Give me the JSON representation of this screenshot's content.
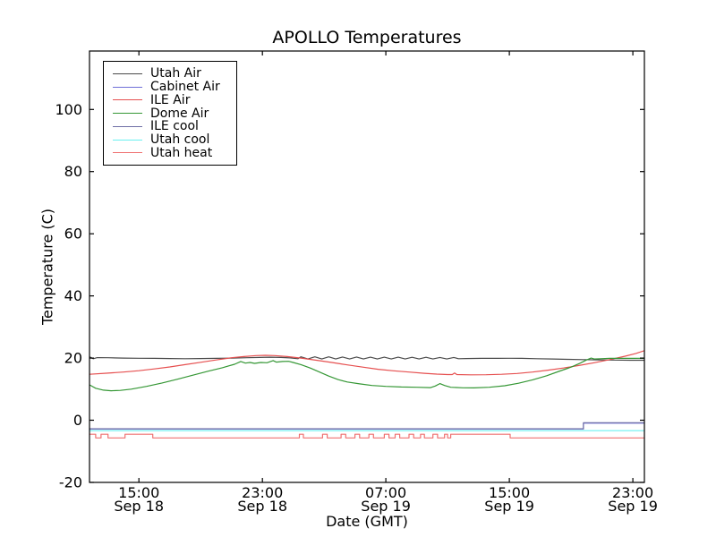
{
  "figure": {
    "background": "#ffffff",
    "frame_color": "#000000",
    "text_color": "#000000"
  },
  "chart_data": {
    "type": "line",
    "title": "APOLLO Temperatures",
    "xlabel": "Date (GMT)",
    "ylabel": "Temperature (C)",
    "grid": false,
    "legend_position": "upper left",
    "x_unit": "hours since Sep 18 00:00 GMT",
    "xlim": [
      11.8,
      47.75
    ],
    "ylim": [
      -20,
      118.8
    ],
    "yticks": [
      -20,
      0,
      20,
      40,
      60,
      80,
      100
    ],
    "xticks": [
      {
        "h": 15,
        "time": "15:00",
        "date": "Sep 18"
      },
      {
        "h": 23,
        "time": "23:00",
        "date": "Sep 18"
      },
      {
        "h": 31,
        "time": "07:00",
        "date": "Sep 19"
      },
      {
        "h": 39,
        "time": "15:00",
        "date": "Sep 19"
      },
      {
        "h": 47,
        "time": "23:00",
        "date": "Sep 19"
      }
    ],
    "series": [
      {
        "name": "Utah Air",
        "color": "#4a4a4a",
        "points": [
          [
            11.8,
            20.4
          ],
          [
            12.05,
            19.8
          ],
          [
            12.3,
            20.15
          ],
          [
            13,
            20.1
          ],
          [
            14,
            20.0
          ],
          [
            15,
            19.95
          ],
          [
            16,
            19.9
          ],
          [
            17,
            19.85
          ],
          [
            18,
            19.8
          ],
          [
            19,
            19.85
          ],
          [
            20,
            19.9
          ],
          [
            21,
            20.0
          ],
          [
            22,
            20.1
          ],
          [
            22.8,
            20.2
          ],
          [
            23.5,
            20.3
          ],
          [
            24.2,
            20.2
          ],
          [
            24.8,
            20.05
          ],
          [
            25.3,
            19.8
          ],
          [
            25.5,
            20.4
          ],
          [
            25.95,
            19.7
          ],
          [
            26.4,
            20.4
          ],
          [
            26.85,
            19.7
          ],
          [
            27.3,
            20.4
          ],
          [
            27.75,
            19.7
          ],
          [
            28.2,
            20.35
          ],
          [
            28.65,
            19.7
          ],
          [
            29.1,
            20.35
          ],
          [
            29.55,
            19.7
          ],
          [
            30.0,
            20.3
          ],
          [
            30.45,
            19.7
          ],
          [
            30.9,
            20.3
          ],
          [
            31.35,
            19.7
          ],
          [
            31.8,
            20.3
          ],
          [
            32.25,
            19.7
          ],
          [
            32.7,
            20.25
          ],
          [
            33.15,
            19.7
          ],
          [
            33.6,
            20.25
          ],
          [
            34.05,
            19.7
          ],
          [
            34.5,
            20.2
          ],
          [
            34.95,
            19.7
          ],
          [
            35.4,
            20.2
          ],
          [
            35.7,
            19.8
          ],
          [
            36.2,
            19.85
          ],
          [
            37.2,
            19.9
          ],
          [
            38.2,
            19.92
          ],
          [
            39.0,
            19.95
          ],
          [
            39.8,
            19.9
          ],
          [
            40.8,
            19.8
          ],
          [
            41.8,
            19.7
          ],
          [
            42.8,
            19.6
          ],
          [
            43.8,
            19.5
          ],
          [
            44.8,
            19.42
          ],
          [
            45.8,
            19.36
          ],
          [
            46.8,
            19.3
          ],
          [
            47.75,
            19.3
          ]
        ]
      },
      {
        "name": "Cabinet Air",
        "color": "#6f6fd8",
        "points": [
          [
            11.8,
            -2.85
          ],
          [
            43.8,
            -2.85
          ],
          [
            43.8,
            -0.95
          ],
          [
            47.75,
            -0.95
          ]
        ]
      },
      {
        "name": "ILE Air",
        "color": "#e65050",
        "points": [
          [
            11.8,
            14.8
          ],
          [
            13,
            15.15
          ],
          [
            14,
            15.5
          ],
          [
            15,
            15.95
          ],
          [
            16,
            16.5
          ],
          [
            17,
            17.15
          ],
          [
            18,
            17.9
          ],
          [
            19,
            18.65
          ],
          [
            20,
            19.4
          ],
          [
            21,
            20.1
          ],
          [
            21.8,
            20.5
          ],
          [
            22.6,
            20.8
          ],
          [
            23.2,
            20.9
          ],
          [
            23.8,
            20.8
          ],
          [
            24.6,
            20.5
          ],
          [
            25.5,
            20.0
          ],
          [
            26.5,
            19.3
          ],
          [
            27.5,
            18.6
          ],
          [
            28.5,
            17.8
          ],
          [
            29.5,
            17.1
          ],
          [
            30.5,
            16.4
          ],
          [
            31.5,
            15.9
          ],
          [
            32.5,
            15.5
          ],
          [
            33.5,
            15.1
          ],
          [
            34.3,
            14.85
          ],
          [
            35.0,
            14.7
          ],
          [
            35.3,
            14.7
          ],
          [
            35.45,
            15.2
          ],
          [
            35.6,
            14.7
          ],
          [
            36.5,
            14.6
          ],
          [
            37.5,
            14.65
          ],
          [
            38.5,
            14.8
          ],
          [
            39.5,
            15.05
          ],
          [
            40.5,
            15.5
          ],
          [
            41.5,
            16.1
          ],
          [
            42.5,
            16.8
          ],
          [
            43.5,
            17.6
          ],
          [
            44.5,
            18.5
          ],
          [
            45.5,
            19.5
          ],
          [
            46.5,
            20.6
          ],
          [
            47.2,
            21.5
          ],
          [
            47.75,
            22.4
          ]
        ]
      },
      {
        "name": "Dome Air",
        "color": "#359735",
        "points": [
          [
            11.8,
            11.4
          ],
          [
            12.2,
            10.3
          ],
          [
            12.7,
            9.7
          ],
          [
            13.2,
            9.5
          ],
          [
            13.8,
            9.6
          ],
          [
            14.5,
            10.0
          ],
          [
            15.5,
            10.9
          ],
          [
            16.5,
            12.0
          ],
          [
            17.5,
            13.2
          ],
          [
            18.5,
            14.5
          ],
          [
            19.5,
            15.8
          ],
          [
            20.4,
            16.9
          ],
          [
            21.2,
            18.0
          ],
          [
            21.6,
            18.9
          ],
          [
            21.9,
            18.4
          ],
          [
            22.2,
            18.6
          ],
          [
            22.5,
            18.3
          ],
          [
            22.9,
            18.6
          ],
          [
            23.3,
            18.5
          ],
          [
            23.7,
            19.2
          ],
          [
            23.9,
            18.7
          ],
          [
            24.3,
            18.9
          ],
          [
            24.7,
            18.95
          ],
          [
            25.0,
            18.6
          ],
          [
            25.5,
            17.9
          ],
          [
            26.1,
            16.8
          ],
          [
            26.7,
            15.5
          ],
          [
            27.3,
            14.2
          ],
          [
            27.9,
            13.1
          ],
          [
            28.5,
            12.3
          ],
          [
            29.3,
            11.7
          ],
          [
            30.1,
            11.2
          ],
          [
            31.0,
            10.9
          ],
          [
            32.0,
            10.7
          ],
          [
            33.0,
            10.6
          ],
          [
            33.9,
            10.5
          ],
          [
            34.2,
            11.0
          ],
          [
            34.5,
            11.8
          ],
          [
            34.8,
            11.2
          ],
          [
            35.2,
            10.6
          ],
          [
            36.0,
            10.45
          ],
          [
            36.7,
            10.4
          ],
          [
            37.7,
            10.6
          ],
          [
            38.7,
            11.1
          ],
          [
            39.6,
            11.9
          ],
          [
            40.5,
            13.0
          ],
          [
            41.4,
            14.3
          ],
          [
            42.2,
            15.7
          ],
          [
            43.0,
            17.1
          ],
          [
            43.6,
            18.4
          ],
          [
            44.0,
            19.4
          ],
          [
            44.3,
            20.0
          ],
          [
            44.5,
            19.7
          ],
          [
            44.9,
            19.8
          ],
          [
            45.5,
            19.9
          ],
          [
            46.3,
            19.9
          ],
          [
            47.1,
            19.9
          ],
          [
            47.75,
            19.95
          ]
        ]
      },
      {
        "name": "ILE cool",
        "color": "#6f6fa6",
        "points": [
          [
            11.8,
            -2.75
          ],
          [
            43.8,
            -2.75
          ],
          [
            43.8,
            -0.8
          ],
          [
            47.75,
            -0.8
          ]
        ]
      },
      {
        "name": "Utah cool",
        "color": "#6af0f0",
        "points": [
          [
            11.8,
            -3.35
          ],
          [
            47.75,
            -3.35
          ]
        ]
      },
      {
        "name": "Utah heat",
        "color": "#ef7070",
        "points": [
          [
            11.8,
            -4.5
          ],
          [
            12.2,
            -4.5
          ],
          [
            12.2,
            -5.7
          ],
          [
            12.55,
            -5.7
          ],
          [
            12.55,
            -4.5
          ],
          [
            13.0,
            -4.5
          ],
          [
            13.0,
            -5.7
          ],
          [
            14.1,
            -5.7
          ],
          [
            14.1,
            -4.5
          ],
          [
            15.9,
            -4.5
          ],
          [
            15.9,
            -5.7
          ],
          [
            25.4,
            -5.7
          ],
          [
            25.4,
            -4.5
          ],
          [
            25.66,
            -4.5
          ],
          [
            25.66,
            -5.7
          ],
          [
            26.9,
            -5.7
          ],
          [
            26.9,
            -4.5
          ],
          [
            27.2,
            -4.5
          ],
          [
            27.2,
            -5.7
          ],
          [
            28.1,
            -5.7
          ],
          [
            28.1,
            -4.5
          ],
          [
            28.4,
            -4.5
          ],
          [
            28.4,
            -5.7
          ],
          [
            29.0,
            -5.7
          ],
          [
            29.0,
            -4.5
          ],
          [
            29.3,
            -4.5
          ],
          [
            29.3,
            -5.7
          ],
          [
            29.9,
            -5.7
          ],
          [
            29.9,
            -4.5
          ],
          [
            30.2,
            -4.5
          ],
          [
            30.2,
            -5.7
          ],
          [
            30.9,
            -5.7
          ],
          [
            30.9,
            -4.5
          ],
          [
            31.2,
            -4.5
          ],
          [
            31.2,
            -5.7
          ],
          [
            31.6,
            -5.7
          ],
          [
            31.6,
            -4.5
          ],
          [
            31.9,
            -4.5
          ],
          [
            31.9,
            -5.7
          ],
          [
            32.5,
            -5.7
          ],
          [
            32.5,
            -4.5
          ],
          [
            32.8,
            -4.5
          ],
          [
            32.8,
            -5.7
          ],
          [
            33.25,
            -5.7
          ],
          [
            33.25,
            -4.5
          ],
          [
            33.5,
            -4.5
          ],
          [
            33.5,
            -5.7
          ],
          [
            34.05,
            -5.7
          ],
          [
            34.05,
            -4.5
          ],
          [
            34.35,
            -4.5
          ],
          [
            34.35,
            -5.7
          ],
          [
            34.8,
            -5.7
          ],
          [
            34.8,
            -4.5
          ],
          [
            35.0,
            -4.5
          ],
          [
            35.0,
            -5.7
          ],
          [
            35.2,
            -5.7
          ],
          [
            35.2,
            -4.5
          ],
          [
            39.05,
            -4.5
          ],
          [
            39.05,
            -5.7
          ],
          [
            47.75,
            -5.7
          ]
        ]
      }
    ]
  }
}
